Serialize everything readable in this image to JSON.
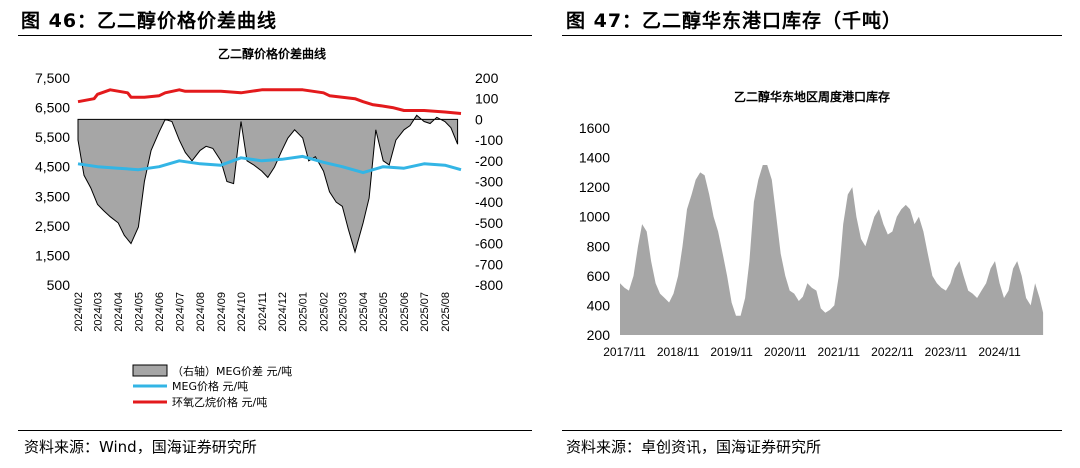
{
  "figures": {
    "left": {
      "heading": "图 46：乙二醇价格价差曲线",
      "source": "资料来源：Wind，国海证券研究所"
    },
    "right": {
      "heading": "图 47：乙二醇华东港口库存（千吨）",
      "source": "资料来源：卓创资讯，国海证券研究所"
    }
  },
  "colors": {
    "meg_price": "#33b5e5",
    "eo_price": "#e31a1c",
    "spread_fill": "#a6a6a6",
    "inventory_fill": "#a6a6a6"
  },
  "chart_data": [
    {
      "type": "line",
      "title": "乙二醇价格价差曲线",
      "xlabel": "",
      "ylabel": "",
      "grid": false,
      "legend_position": "bottom",
      "y_left_ticks": [
        "7,500",
        "6,500",
        "5,500",
        "4,500",
        "3,500",
        "2,500",
        "1,500",
        "500"
      ],
      "y_right_ticks": [
        "200",
        "100",
        "0",
        "-100",
        "-200",
        "-300",
        "-400",
        "-500",
        "-600",
        "-700",
        "-800"
      ],
      "x_ticks": [
        "2024/02",
        "2024/03",
        "2024/04",
        "2024/05",
        "2024/06",
        "2024/07",
        "2024/08",
        "2024/09",
        "2024/10",
        "2024/11",
        "2024/12",
        "2025/01",
        "2025/02",
        "2025/03",
        "2025/04",
        "2025/05",
        "2025/06",
        "2025/07",
        "2025/08"
      ],
      "ylim_left": [
        500,
        7500
      ],
      "ylim_right": [
        -800,
        200
      ],
      "series": [
        {
          "name": "（右轴）MEG价差 元/吨",
          "axis": "right",
          "kind": "area",
          "x": [
            "2024-02-01",
            "2024-02-10",
            "2024-02-20",
            "2024-03-01",
            "2024-03-10",
            "2024-03-20",
            "2024-04-01",
            "2024-04-10",
            "2024-04-20",
            "2024-05-01",
            "2024-05-10",
            "2024-05-20",
            "2024-06-01",
            "2024-06-10",
            "2024-06-20",
            "2024-07-01",
            "2024-07-10",
            "2024-07-20",
            "2024-08-01",
            "2024-08-10",
            "2024-08-20",
            "2024-09-01",
            "2024-09-10",
            "2024-09-20",
            "2024-10-01",
            "2024-10-10",
            "2024-10-20",
            "2024-11-01",
            "2024-11-10",
            "2024-11-20",
            "2024-12-01",
            "2024-12-10",
            "2024-12-20",
            "2025-01-01",
            "2025-01-10",
            "2025-01-20",
            "2025-02-01",
            "2025-02-10",
            "2025-02-20",
            "2025-03-01",
            "2025-03-10",
            "2025-03-20",
            "2025-04-01",
            "2025-04-10",
            "2025-04-20",
            "2025-05-01",
            "2025-05-10",
            "2025-05-20",
            "2025-06-01",
            "2025-06-10",
            "2025-06-20",
            "2025-07-01",
            "2025-07-10",
            "2025-07-20",
            "2025-08-01",
            "2025-08-10",
            "2025-08-20"
          ],
          "values": [
            -100,
            -270,
            -330,
            -410,
            -440,
            -470,
            -500,
            -560,
            -600,
            -520,
            -300,
            -150,
            -60,
            0,
            -10,
            -100,
            -160,
            -200,
            -150,
            -130,
            -140,
            -200,
            -300,
            -310,
            -10,
            -200,
            -220,
            -250,
            -280,
            -230,
            -150,
            -90,
            -50,
            -90,
            -200,
            -180,
            -250,
            -350,
            -400,
            -420,
            -530,
            -640,
            -500,
            -380,
            -50,
            -200,
            -220,
            -100,
            -50,
            -30,
            20,
            -10,
            -20,
            10,
            -10,
            -40,
            -120
          ]
        },
        {
          "name": "MEG价格 元/吨",
          "axis": "left",
          "kind": "line",
          "x": [
            "2024-02-01",
            "2024-03-01",
            "2024-04-01",
            "2024-05-01",
            "2024-06-01",
            "2024-07-01",
            "2024-08-01",
            "2024-09-01",
            "2024-10-01",
            "2024-11-01",
            "2024-12-01",
            "2025-01-01",
            "2025-02-01",
            "2025-03-01",
            "2025-04-01",
            "2025-05-01",
            "2025-06-01",
            "2025-07-01",
            "2025-08-01",
            "2025-08-25"
          ],
          "values": [
            4600,
            4500,
            4450,
            4400,
            4500,
            4700,
            4600,
            4550,
            4800,
            4700,
            4750,
            4850,
            4650,
            4500,
            4300,
            4500,
            4450,
            4600,
            4550,
            4400
          ]
        },
        {
          "name": "环氧乙烷价格 元/吨",
          "axis": "left",
          "kind": "line",
          "x": [
            "2024-02-01",
            "2024-02-25",
            "2024-03-01",
            "2024-03-20",
            "2024-04-15",
            "2024-04-20",
            "2024-05-10",
            "2024-06-01",
            "2024-06-10",
            "2024-07-01",
            "2024-07-10",
            "2024-08-01",
            "2024-09-01",
            "2024-10-01",
            "2024-11-01",
            "2024-12-01",
            "2025-01-01",
            "2025-02-01",
            "2025-02-10",
            "2025-03-01",
            "2025-03-20",
            "2025-04-01",
            "2025-04-15",
            "2025-05-01",
            "2025-05-15",
            "2025-06-01",
            "2025-07-01",
            "2025-08-01",
            "2025-08-25"
          ],
          "values": [
            6700,
            6800,
            6950,
            7100,
            7000,
            6850,
            6850,
            6900,
            7000,
            7100,
            7050,
            7050,
            7050,
            7000,
            7100,
            7100,
            7100,
            7000,
            6900,
            6850,
            6800,
            6700,
            6600,
            6550,
            6500,
            6400,
            6400,
            6350,
            6300
          ]
        }
      ]
    },
    {
      "type": "area",
      "title": "乙二醇华东地区周度港口库存",
      "xlabel": "",
      "ylabel": "",
      "grid": false,
      "y_ticks": [
        "1600",
        "1400",
        "1200",
        "1000",
        "800",
        "600",
        "400",
        "200"
      ],
      "x_ticks": [
        "2017/11",
        "2018/11",
        "2019/11",
        "2020/11",
        "2021/11",
        "2022/11",
        "2023/11",
        "2024/11"
      ],
      "ylim": [
        200,
        1600
      ],
      "series": [
        {
          "name": "",
          "x": [
            "2017-10-01",
            "2017-11-01",
            "2017-12-01",
            "2018-01-01",
            "2018-02-01",
            "2018-03-01",
            "2018-04-01",
            "2018-05-01",
            "2018-06-01",
            "2018-07-01",
            "2018-08-01",
            "2018-09-01",
            "2018-10-01",
            "2018-11-01",
            "2018-12-01",
            "2019-01-01",
            "2019-02-01",
            "2019-03-01",
            "2019-04-01",
            "2019-05-01",
            "2019-06-01",
            "2019-07-01",
            "2019-08-01",
            "2019-09-01",
            "2019-10-01",
            "2019-11-01",
            "2019-12-01",
            "2020-01-01",
            "2020-02-01",
            "2020-03-01",
            "2020-04-01",
            "2020-05-01",
            "2020-06-01",
            "2020-07-01",
            "2020-08-01",
            "2020-09-01",
            "2020-10-01",
            "2020-11-01",
            "2020-12-01",
            "2021-01-01",
            "2021-02-01",
            "2021-03-01",
            "2021-04-01",
            "2021-05-01",
            "2021-06-01",
            "2021-07-01",
            "2021-08-01",
            "2021-09-01",
            "2021-10-01",
            "2021-11-01",
            "2021-12-01",
            "2022-01-01",
            "2022-02-01",
            "2022-03-01",
            "2022-04-01",
            "2022-05-01",
            "2022-06-01",
            "2022-07-01",
            "2022-08-01",
            "2022-09-01",
            "2022-10-01",
            "2022-11-01",
            "2022-12-01",
            "2023-01-01",
            "2023-02-01",
            "2023-03-01",
            "2023-04-01",
            "2023-05-01",
            "2023-06-01",
            "2023-07-01",
            "2023-08-01",
            "2023-09-01",
            "2023-10-01",
            "2023-11-01",
            "2023-12-01",
            "2024-01-01",
            "2024-02-01",
            "2024-03-01",
            "2024-04-01",
            "2024-05-01",
            "2024-06-01",
            "2024-07-01",
            "2024-08-01",
            "2024-09-01",
            "2024-10-01",
            "2024-11-01",
            "2024-12-01",
            "2025-01-01",
            "2025-02-01",
            "2025-03-01",
            "2025-04-01",
            "2025-05-01",
            "2025-06-01",
            "2025-07-01",
            "2025-08-01",
            "2025-08-25"
          ],
          "values": [
            550,
            520,
            500,
            600,
            800,
            950,
            900,
            700,
            550,
            480,
            450,
            420,
            480,
            600,
            800,
            1050,
            1150,
            1250,
            1300,
            1280,
            1150,
            1000,
            900,
            750,
            600,
            420,
            330,
            330,
            450,
            700,
            1100,
            1250,
            1350,
            1350,
            1250,
            1000,
            750,
            600,
            500,
            480,
            430,
            460,
            550,
            520,
            500,
            380,
            350,
            370,
            400,
            600,
            950,
            1150,
            1200,
            1000,
            850,
            800,
            900,
            1000,
            1050,
            950,
            880,
            900,
            1000,
            1050,
            1080,
            1050,
            950,
            1000,
            900,
            750,
            600,
            550,
            520,
            500,
            550,
            650,
            700,
            600,
            500,
            480,
            450,
            500,
            550,
            650,
            700,
            550,
            450,
            500,
            650,
            700,
            600,
            450,
            400,
            550,
            450,
            350
          ]
        }
      ]
    }
  ]
}
